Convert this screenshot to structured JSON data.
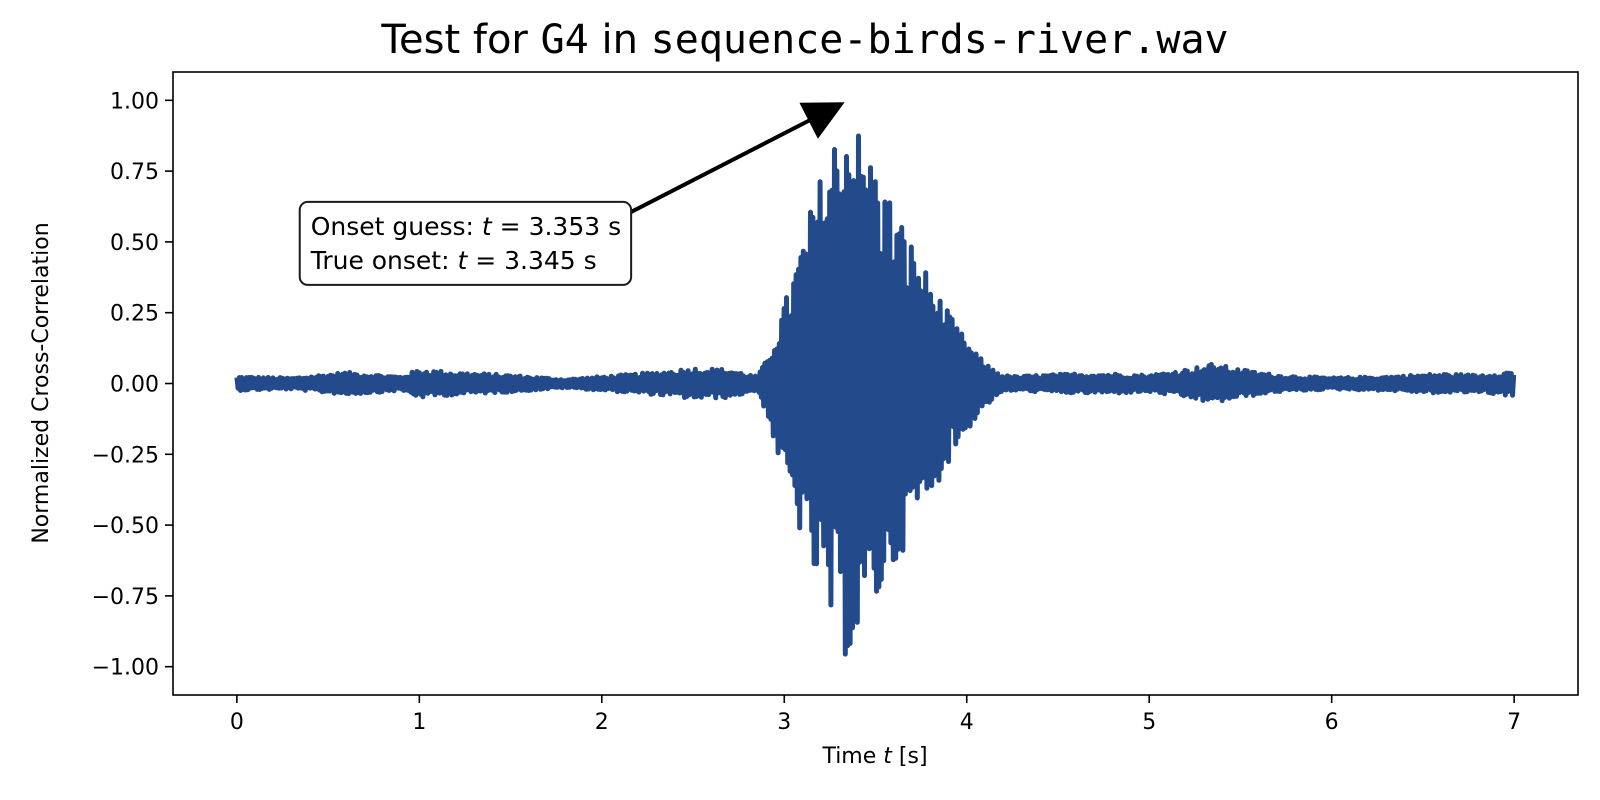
{
  "chart_data": {
    "type": "line",
    "title": {
      "prefix": "Test for ",
      "note": "G4",
      "middle": " in ",
      "file": "sequence-birds-river.wav"
    },
    "xlabel": {
      "prefix": "Time ",
      "var": "t",
      "suffix": " [s]"
    },
    "ylabel": "Normalized Cross-Correlation",
    "xlim": [
      -0.35,
      7.35
    ],
    "ylim": [
      -1.1,
      1.1
    ],
    "x_ticks": [
      0,
      1,
      2,
      3,
      4,
      5,
      6,
      7
    ],
    "x_tick_labels": [
      "0",
      "1",
      "2",
      "3",
      "4",
      "5",
      "6",
      "7"
    ],
    "y_ticks": [
      1.0,
      0.75,
      0.5,
      0.25,
      0.0,
      -0.25,
      -0.5,
      -0.75,
      -1.0
    ],
    "y_tick_labels": [
      "1.00",
      "0.75",
      "0.50",
      "0.25",
      "0.00",
      "−0.25",
      "−0.50",
      "−0.75",
      "−1.00"
    ],
    "grid": false,
    "series": [
      {
        "color": "#234b8c",
        "x_range": [
          0,
          7
        ],
        "envelope": {
          "x": [
            0,
            0.3,
            0.6,
            0.9,
            1.0,
            1.2,
            1.5,
            1.8,
            2.0,
            2.3,
            2.5,
            2.7,
            2.85,
            2.9,
            3.0,
            3.1,
            3.2,
            3.3,
            3.353,
            3.4,
            3.5,
            3.6,
            3.7,
            3.8,
            3.9,
            4.0,
            4.1,
            4.2,
            4.25,
            4.4,
            4.6,
            4.8,
            5.0,
            5.2,
            5.35,
            5.5,
            5.7,
            6.0,
            6.3,
            6.6,
            6.8,
            7.0
          ],
          "upper": [
            0.025,
            0.02,
            0.04,
            0.025,
            0.05,
            0.04,
            0.03,
            0.015,
            0.025,
            0.04,
            0.055,
            0.05,
            0.025,
            0.08,
            0.28,
            0.52,
            0.74,
            0.94,
            1.0,
            0.92,
            0.78,
            0.64,
            0.5,
            0.37,
            0.25,
            0.15,
            0.07,
            0.03,
            0.025,
            0.03,
            0.035,
            0.035,
            0.03,
            0.05,
            0.07,
            0.05,
            0.03,
            0.02,
            0.025,
            0.035,
            0.03,
            0.045
          ],
          "lower": [
            -0.025,
            -0.02,
            -0.04,
            -0.025,
            -0.05,
            -0.04,
            -0.03,
            -0.015,
            -0.025,
            -0.04,
            -0.055,
            -0.05,
            -0.025,
            -0.1,
            -0.35,
            -0.56,
            -0.77,
            -0.94,
            -0.98,
            -0.93,
            -0.8,
            -0.66,
            -0.52,
            -0.4,
            -0.28,
            -0.17,
            -0.08,
            -0.03,
            -0.025,
            -0.03,
            -0.035,
            -0.035,
            -0.03,
            -0.05,
            -0.07,
            -0.05,
            -0.03,
            -0.02,
            -0.025,
            -0.035,
            -0.03,
            -0.045
          ]
        }
      }
    ],
    "annotation": {
      "lines": [
        {
          "prefix": "Onset guess: ",
          "var": "t",
          "suffix": " = 3.353 s"
        },
        {
          "prefix": "True onset: ",
          "var": "t",
          "suffix": " = 3.345 s"
        }
      ],
      "arrow_target": {
        "x": 3.353,
        "y": 1.0
      },
      "text_anchor": {
        "x": 0.35,
        "y": 0.62
      }
    }
  }
}
